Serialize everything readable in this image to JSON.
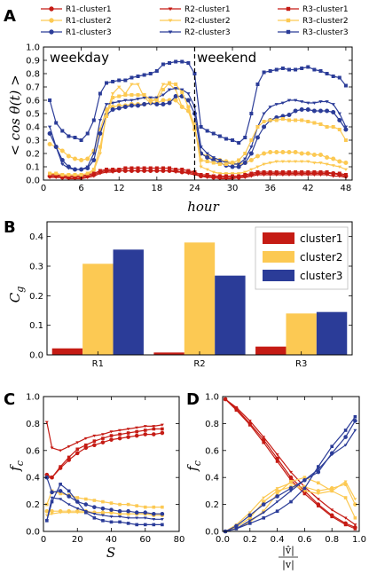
{
  "colors": {
    "red": "#c51b14",
    "yellow": "#fcc953",
    "blue": "#2b3c98"
  },
  "chart_data": [
    {
      "panel": "A",
      "type": "line",
      "ylabel": "< cos θ(t) >",
      "xlabel": "hour",
      "xlim": [
        0,
        49
      ],
      "ylim": [
        0,
        1.0
      ],
      "xticks": [
        0,
        6,
        12,
        18,
        24,
        30,
        36,
        42,
        48
      ],
      "yticks": [
        0.0,
        0.1,
        0.2,
        0.3,
        0.4,
        0.5,
        0.6,
        0.7,
        0.8,
        0.9,
        1.0
      ],
      "annotations": [
        "weekday",
        "weekend"
      ],
      "divider_x": 24,
      "x": [
        1,
        2,
        3,
        4,
        5,
        6,
        7,
        8,
        9,
        10,
        11,
        12,
        13,
        14,
        15,
        16,
        17,
        18,
        19,
        20,
        21,
        22,
        23,
        24,
        25,
        26,
        27,
        28,
        29,
        30,
        31,
        32,
        33,
        34,
        35,
        36,
        37,
        38,
        39,
        40,
        41,
        42,
        43,
        44,
        45,
        46,
        47,
        48
      ],
      "series": [
        {
          "name": "R1-cluster1",
          "color": "red",
          "marker": "circle",
          "values": [
            0.03,
            0.03,
            0.02,
            0.02,
            0.02,
            0.02,
            0.03,
            0.04,
            0.06,
            0.07,
            0.07,
            0.07,
            0.07,
            0.07,
            0.07,
            0.07,
            0.07,
            0.07,
            0.07,
            0.07,
            0.07,
            0.06,
            0.06,
            0.05,
            0.03,
            0.03,
            0.02,
            0.02,
            0.02,
            0.02,
            0.02,
            0.03,
            0.04,
            0.05,
            0.05,
            0.05,
            0.05,
            0.05,
            0.05,
            0.05,
            0.05,
            0.05,
            0.05,
            0.05,
            0.05,
            0.05,
            0.04,
            0.03
          ]
        },
        {
          "name": "R1-cluster2",
          "color": "yellow",
          "marker": "circle",
          "values": [
            0.27,
            0.25,
            0.22,
            0.18,
            0.16,
            0.15,
            0.16,
            0.22,
            0.38,
            0.53,
            0.55,
            0.56,
            0.56,
            0.57,
            0.57,
            0.57,
            0.58,
            0.58,
            0.6,
            0.6,
            0.6,
            0.55,
            0.52,
            0.38,
            0.2,
            0.18,
            0.16,
            0.15,
            0.14,
            0.13,
            0.12,
            0.13,
            0.15,
            0.18,
            0.2,
            0.21,
            0.21,
            0.21,
            0.21,
            0.21,
            0.2,
            0.2,
            0.19,
            0.19,
            0.17,
            0.16,
            0.14,
            0.13
          ]
        },
        {
          "name": "R1-cluster3",
          "color": "blue",
          "marker": "circle",
          "values": [
            0.35,
            0.25,
            0.15,
            0.1,
            0.08,
            0.08,
            0.09,
            0.15,
            0.35,
            0.49,
            0.53,
            0.54,
            0.55,
            0.56,
            0.56,
            0.57,
            0.58,
            0.57,
            0.57,
            0.58,
            0.63,
            0.63,
            0.6,
            0.5,
            0.2,
            0.17,
            0.15,
            0.13,
            0.11,
            0.1,
            0.1,
            0.13,
            0.2,
            0.32,
            0.4,
            0.45,
            0.47,
            0.48,
            0.49,
            0.52,
            0.53,
            0.53,
            0.52,
            0.52,
            0.52,
            0.51,
            0.45,
            0.38
          ]
        },
        {
          "name": "R2-cluster1",
          "color": "red",
          "marker": "triangle",
          "values": [
            0.02,
            0.02,
            0.02,
            0.01,
            0.01,
            0.01,
            0.02,
            0.03,
            0.05,
            0.06,
            0.06,
            0.07,
            0.07,
            0.07,
            0.07,
            0.07,
            0.07,
            0.07,
            0.07,
            0.07,
            0.06,
            0.06,
            0.05,
            0.04,
            0.03,
            0.02,
            0.02,
            0.01,
            0.01,
            0.01,
            0.02,
            0.02,
            0.03,
            0.04,
            0.04,
            0.04,
            0.04,
            0.04,
            0.04,
            0.04,
            0.04,
            0.04,
            0.04,
            0.04,
            0.04,
            0.03,
            0.03,
            0.02
          ]
        },
        {
          "name": "R2-cluster2",
          "color": "yellow",
          "marker": "triangle",
          "values": [
            0.05,
            0.04,
            0.03,
            0.03,
            0.03,
            0.03,
            0.04,
            0.07,
            0.2,
            0.5,
            0.65,
            0.7,
            0.65,
            0.72,
            0.72,
            0.62,
            0.58,
            0.62,
            0.72,
            0.72,
            0.68,
            0.55,
            0.52,
            0.42,
            0.1,
            0.08,
            0.06,
            0.05,
            0.05,
            0.05,
            0.05,
            0.06,
            0.08,
            0.1,
            0.12,
            0.13,
            0.14,
            0.14,
            0.14,
            0.14,
            0.14,
            0.14,
            0.13,
            0.13,
            0.12,
            0.11,
            0.1,
            0.08
          ]
        },
        {
          "name": "R2-cluster3",
          "color": "blue",
          "marker": "triangle",
          "values": [
            0.4,
            0.25,
            0.12,
            0.09,
            0.08,
            0.08,
            0.1,
            0.2,
            0.45,
            0.57,
            0.58,
            0.59,
            0.6,
            0.6,
            0.61,
            0.62,
            0.62,
            0.62,
            0.64,
            0.68,
            0.69,
            0.68,
            0.65,
            0.55,
            0.25,
            0.2,
            0.17,
            0.15,
            0.13,
            0.12,
            0.12,
            0.16,
            0.25,
            0.4,
            0.5,
            0.55,
            0.57,
            0.58,
            0.6,
            0.6,
            0.59,
            0.58,
            0.58,
            0.59,
            0.59,
            0.57,
            0.5,
            0.4
          ]
        },
        {
          "name": "R3-cluster1",
          "color": "red",
          "marker": "square",
          "values": [
            0.04,
            0.04,
            0.03,
            0.03,
            0.03,
            0.03,
            0.04,
            0.05,
            0.07,
            0.08,
            0.08,
            0.08,
            0.09,
            0.09,
            0.09,
            0.09,
            0.09,
            0.09,
            0.09,
            0.09,
            0.08,
            0.08,
            0.07,
            0.06,
            0.04,
            0.04,
            0.03,
            0.03,
            0.03,
            0.03,
            0.03,
            0.04,
            0.05,
            0.06,
            0.06,
            0.06,
            0.06,
            0.06,
            0.06,
            0.06,
            0.06,
            0.06,
            0.06,
            0.06,
            0.06,
            0.05,
            0.05,
            0.04
          ]
        },
        {
          "name": "R3-cluster2",
          "color": "yellow",
          "marker": "square",
          "values": [
            0.05,
            0.05,
            0.04,
            0.04,
            0.04,
            0.04,
            0.05,
            0.08,
            0.25,
            0.48,
            0.62,
            0.63,
            0.64,
            0.64,
            0.64,
            0.64,
            0.6,
            0.6,
            0.68,
            0.73,
            0.72,
            0.66,
            0.55,
            0.4,
            0.15,
            0.14,
            0.13,
            0.12,
            0.12,
            0.13,
            0.15,
            0.2,
            0.3,
            0.4,
            0.44,
            0.45,
            0.45,
            0.46,
            0.45,
            0.45,
            0.45,
            0.44,
            0.43,
            0.42,
            0.4,
            0.4,
            0.38,
            0.3
          ]
        },
        {
          "name": "R3-cluster3",
          "color": "blue",
          "marker": "square",
          "values": [
            0.6,
            0.43,
            0.37,
            0.33,
            0.32,
            0.3,
            0.35,
            0.45,
            0.65,
            0.73,
            0.74,
            0.75,
            0.75,
            0.77,
            0.78,
            0.79,
            0.8,
            0.82,
            0.87,
            0.88,
            0.89,
            0.89,
            0.88,
            0.8,
            0.4,
            0.37,
            0.35,
            0.33,
            0.31,
            0.3,
            0.28,
            0.32,
            0.5,
            0.72,
            0.81,
            0.82,
            0.83,
            0.84,
            0.83,
            0.83,
            0.84,
            0.85,
            0.83,
            0.82,
            0.8,
            0.78,
            0.77,
            0.71
          ]
        }
      ]
    },
    {
      "panel": "B",
      "type": "bar",
      "ylabel": "C_g",
      "categories": [
        "R1",
        "R2",
        "R3"
      ],
      "ylim": [
        0,
        0.45
      ],
      "yticks": [
        0.0,
        0.1,
        0.2,
        0.3,
        0.4
      ],
      "series": [
        {
          "name": "cluster1",
          "color": "red",
          "values": [
            0.022,
            0.008,
            0.028
          ]
        },
        {
          "name": "cluster2",
          "color": "yellow",
          "values": [
            0.308,
            0.38,
            0.14
          ]
        },
        {
          "name": "cluster3",
          "color": "blue",
          "values": [
            0.356,
            0.268,
            0.145
          ]
        }
      ]
    },
    {
      "panel": "C",
      "type": "line",
      "ylabel": "f_c",
      "xlabel": "S",
      "xlim": [
        0,
        80
      ],
      "ylim": [
        0,
        1.0
      ],
      "xticks": [
        0,
        20,
        40,
        60,
        80
      ],
      "yticks": [
        0.0,
        0.2,
        0.4,
        0.6,
        0.8,
        1.0
      ],
      "x": [
        2,
        5,
        10,
        15,
        20,
        25,
        30,
        35,
        40,
        45,
        50,
        55,
        60,
        65,
        70
      ],
      "series": [
        {
          "name": "R1-cluster1",
          "color": "red",
          "marker": "circle",
          "values": [
            0.42,
            0.4,
            0.47,
            0.53,
            0.58,
            0.62,
            0.64,
            0.66,
            0.68,
            0.69,
            0.7,
            0.71,
            0.72,
            0.72,
            0.73
          ]
        },
        {
          "name": "R2-cluster1",
          "color": "red",
          "marker": "triangle",
          "values": [
            0.81,
            0.62,
            0.6,
            0.63,
            0.66,
            0.69,
            0.71,
            0.72,
            0.74,
            0.75,
            0.76,
            0.77,
            0.78,
            0.78,
            0.79
          ]
        },
        {
          "name": "R3-cluster1",
          "color": "red",
          "marker": "square",
          "values": [
            0.4,
            0.4,
            0.48,
            0.55,
            0.61,
            0.64,
            0.67,
            0.69,
            0.71,
            0.72,
            0.73,
            0.74,
            0.75,
            0.76,
            0.76
          ]
        },
        {
          "name": "R1-cluster2",
          "color": "yellow",
          "marker": "circle",
          "values": [
            0.15,
            0.15,
            0.15,
            0.15,
            0.15,
            0.15,
            0.14,
            0.14,
            0.14,
            0.13,
            0.13,
            0.13,
            0.13,
            0.12,
            0.12
          ]
        },
        {
          "name": "R2-cluster2",
          "color": "yellow",
          "marker": "triangle",
          "values": [
            0.12,
            0.13,
            0.14,
            0.14,
            0.14,
            0.14,
            0.14,
            0.14,
            0.14,
            0.13,
            0.13,
            0.13,
            0.13,
            0.13,
            0.13
          ]
        },
        {
          "name": "R3-cluster2",
          "color": "yellow",
          "marker": "square",
          "values": [
            0.2,
            0.3,
            0.28,
            0.27,
            0.25,
            0.24,
            0.23,
            0.22,
            0.21,
            0.2,
            0.2,
            0.19,
            0.18,
            0.18,
            0.18
          ]
        },
        {
          "name": "R1-cluster3",
          "color": "blue",
          "marker": "circle",
          "values": [
            0.4,
            0.29,
            0.3,
            0.26,
            0.22,
            0.2,
            0.18,
            0.17,
            0.16,
            0.15,
            0.15,
            0.14,
            0.14,
            0.13,
            0.13
          ]
        },
        {
          "name": "R2-cluster3",
          "color": "blue",
          "marker": "triangle",
          "values": [
            0.08,
            0.25,
            0.24,
            0.2,
            0.17,
            0.15,
            0.13,
            0.12,
            0.11,
            0.11,
            0.1,
            0.1,
            0.1,
            0.09,
            0.09
          ]
        },
        {
          "name": "R3-cluster3",
          "color": "blue",
          "marker": "square",
          "values": [
            0.08,
            0.22,
            0.35,
            0.3,
            0.22,
            0.14,
            0.1,
            0.08,
            0.07,
            0.07,
            0.06,
            0.05,
            0.05,
            0.05,
            0.05
          ]
        }
      ]
    },
    {
      "panel": "D",
      "type": "line",
      "ylabel": "f_c",
      "xlabel": "|v̂| / |v|",
      "xlim": [
        0,
        1.0
      ],
      "ylim": [
        0,
        1.0
      ],
      "xticks": [
        0.0,
        0.2,
        0.4,
        0.6,
        0.8,
        1.0
      ],
      "yticks": [
        0.0,
        0.2,
        0.4,
        0.6,
        0.8,
        1.0
      ],
      "x": [
        0.02,
        0.1,
        0.2,
        0.3,
        0.4,
        0.5,
        0.6,
        0.7,
        0.8,
        0.9,
        0.97
      ],
      "series": [
        {
          "name": "R1-cluster1",
          "color": "red",
          "marker": "circle",
          "values": [
            0.98,
            0.91,
            0.8,
            0.68,
            0.54,
            0.4,
            0.3,
            0.2,
            0.12,
            0.06,
            0.03
          ]
        },
        {
          "name": "R2-cluster1",
          "color": "red",
          "marker": "triangle",
          "values": [
            0.98,
            0.92,
            0.82,
            0.7,
            0.57,
            0.44,
            0.33,
            0.24,
            0.16,
            0.1,
            0.05
          ]
        },
        {
          "name": "R3-cluster1",
          "color": "red",
          "marker": "square",
          "values": [
            0.98,
            0.9,
            0.79,
            0.66,
            0.52,
            0.38,
            0.28,
            0.19,
            0.11,
            0.05,
            0.02
          ]
        },
        {
          "name": "R1-cluster2",
          "color": "yellow",
          "marker": "circle",
          "values": [
            0.0,
            0.03,
            0.1,
            0.22,
            0.3,
            0.33,
            0.33,
            0.3,
            0.32,
            0.35,
            0.2
          ]
        },
        {
          "name": "R2-cluster2",
          "color": "yellow",
          "marker": "triangle",
          "values": [
            0.0,
            0.05,
            0.14,
            0.25,
            0.32,
            0.36,
            0.3,
            0.28,
            0.3,
            0.37,
            0.24
          ]
        },
        {
          "name": "R3-cluster2",
          "color": "yellow",
          "marker": "square",
          "values": [
            0.0,
            0.02,
            0.07,
            0.15,
            0.28,
            0.37,
            0.4,
            0.36,
            0.3,
            0.25,
            0.1
          ]
        },
        {
          "name": "R1-cluster3",
          "color": "blue",
          "marker": "circle",
          "values": [
            0.0,
            0.04,
            0.12,
            0.2,
            0.26,
            0.32,
            0.38,
            0.44,
            0.58,
            0.7,
            0.82
          ]
        },
        {
          "name": "R2-cluster3",
          "color": "blue",
          "marker": "triangle",
          "values": [
            0.0,
            0.02,
            0.08,
            0.14,
            0.22,
            0.3,
            0.38,
            0.46,
            0.57,
            0.64,
            0.75
          ]
        },
        {
          "name": "R3-cluster3",
          "color": "blue",
          "marker": "square",
          "values": [
            0.0,
            0.02,
            0.06,
            0.1,
            0.15,
            0.22,
            0.32,
            0.48,
            0.63,
            0.75,
            0.85
          ]
        }
      ]
    }
  ]
}
